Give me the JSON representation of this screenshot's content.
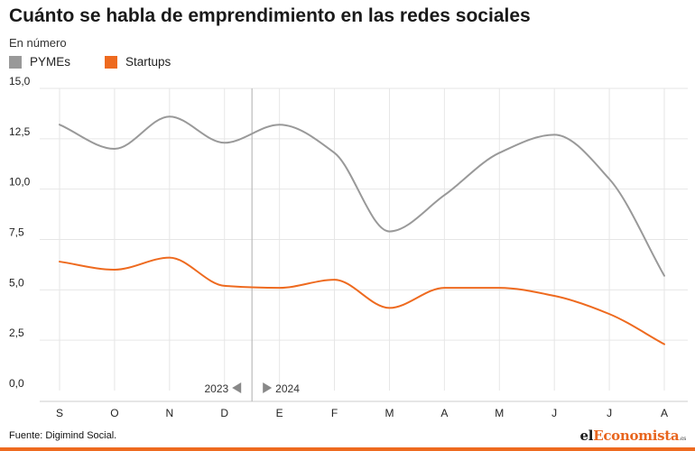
{
  "title": "Cuánto se habla de emprendimiento en las redes sociales",
  "subtitle": "En número",
  "source": "Fuente: Digimind Social.",
  "logo": {
    "part1": "el",
    "part2": "Economista",
    "part3": ".es"
  },
  "colors": {
    "pymes": "#999999",
    "startups": "#ee6a1f",
    "grid": "#e6e6e6",
    "axis": "#cccccc"
  },
  "chart_data": {
    "type": "line",
    "title": "Cuánto se habla de emprendimiento en las redes sociales",
    "ylabel": "En número",
    "xlabel": "",
    "ylim": [
      0,
      15
    ],
    "yticks": [
      "0,0",
      "2,5",
      "5,0",
      "7,5",
      "10,0",
      "12,5",
      "15,0"
    ],
    "ytick_values": [
      0,
      2.5,
      5,
      7.5,
      10,
      12.5,
      15
    ],
    "categories": [
      "S",
      "O",
      "N",
      "D",
      "E",
      "F",
      "M",
      "A",
      "M",
      "J",
      "J",
      "A"
    ],
    "grid": true,
    "legend_position": "top-left",
    "period_labels": {
      "left": "2023",
      "right": "2024"
    },
    "series": [
      {
        "name": "PYMEs",
        "values": [
          13.2,
          12.0,
          13.6,
          12.3,
          13.2,
          11.8,
          7.9,
          9.7,
          11.8,
          12.7,
          10.5,
          5.7
        ]
      },
      {
        "name": "Startups",
        "values": [
          6.4,
          6.0,
          6.6,
          5.2,
          5.1,
          5.5,
          4.1,
          5.1,
          5.1,
          4.7,
          3.8,
          2.3
        ]
      }
    ]
  }
}
